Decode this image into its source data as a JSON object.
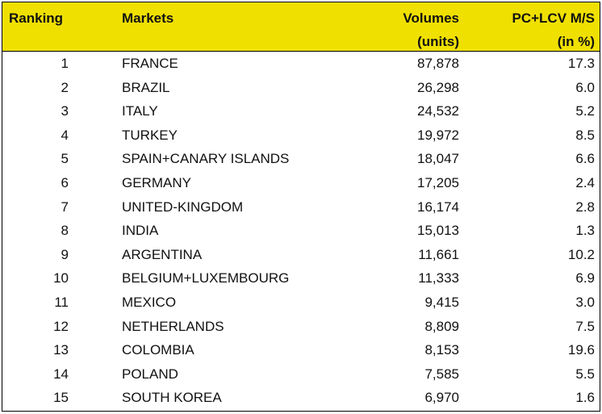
{
  "table": {
    "header": {
      "ranking": "Ranking",
      "markets": "Markets",
      "volumes": [
        "Volumes",
        "(units)"
      ],
      "share": [
        "PC+LCV M/S",
        "(in %)"
      ]
    },
    "rows": [
      [
        "1",
        "FRANCE",
        "87,878",
        "17.3"
      ],
      [
        "2",
        "BRAZIL",
        "26,298",
        "6.0"
      ],
      [
        "3",
        "ITALY",
        "24,532",
        "5.2"
      ],
      [
        "4",
        "TURKEY",
        "19,972",
        "8.5"
      ],
      [
        "5",
        "SPAIN+CANARY ISLANDS",
        "18,047",
        "6.6"
      ],
      [
        "6",
        "GERMANY",
        "17,205",
        "2.4"
      ],
      [
        "7",
        "UNITED-KINGDOM",
        "16,174",
        "2.8"
      ],
      [
        "8",
        "INDIA",
        "15,013",
        "1.3"
      ],
      [
        "9",
        "ARGENTINA",
        "11,661",
        "10.2"
      ],
      [
        "10",
        "BELGIUM+LUXEMBOURG",
        "11,333",
        "6.9"
      ],
      [
        "11",
        "MEXICO",
        "9,415",
        "3.0"
      ],
      [
        "12",
        "NETHERLANDS",
        "8,809",
        "7.5"
      ],
      [
        "13",
        "COLOMBIA",
        "8,153",
        "19.6"
      ],
      [
        "14",
        "POLAND",
        "7,585",
        "5.5"
      ],
      [
        "15",
        "SOUTH KOREA",
        "6,970",
        "1.6"
      ]
    ]
  }
}
